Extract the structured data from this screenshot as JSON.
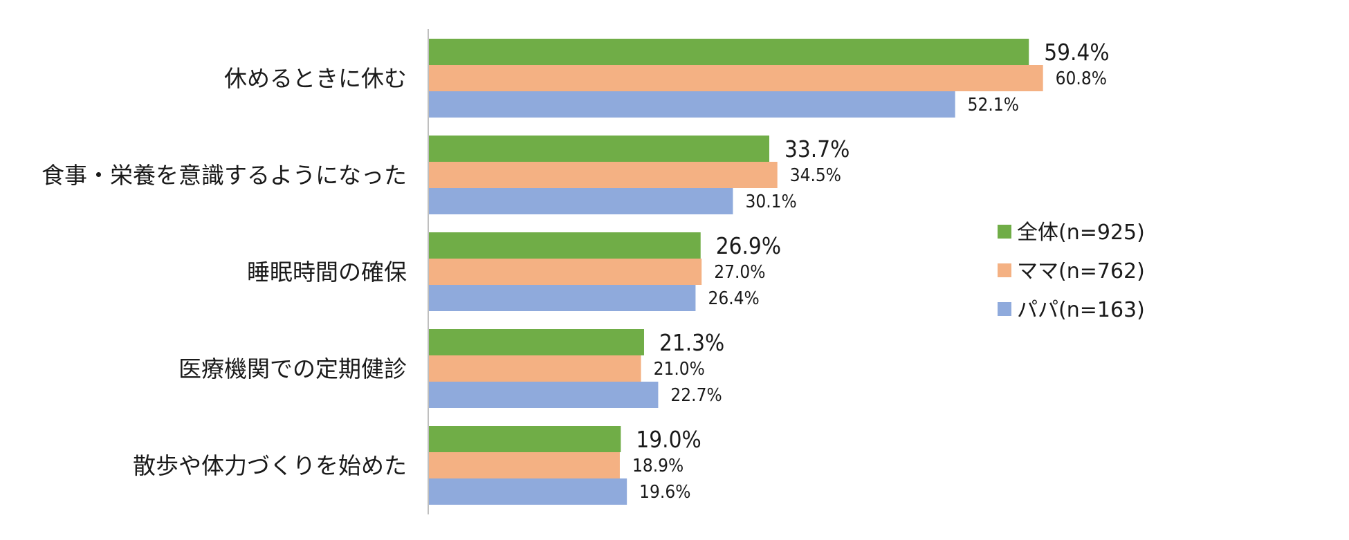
{
  "chart_data": {
    "type": "bar",
    "orientation": "horizontal",
    "title": "",
    "xlabel": "",
    "ylabel": "",
    "xlim": [
      0,
      70
    ],
    "grid": false,
    "legend_position": "right",
    "categories": [
      "休めるときに休む",
      "食事・栄養を意識するようになった",
      "睡眠時間の確保",
      "医療機関での定期健診",
      "散歩や体力づくりを始めた"
    ],
    "series": [
      {
        "name": "全体(n=925)",
        "color": "#70ad47",
        "values": [
          59.4,
          33.7,
          26.9,
          21.3,
          19.0
        ],
        "labels": [
          "59.4%",
          "33.7%",
          "26.9%",
          "21.3%",
          "19.0%"
        ]
      },
      {
        "name": "ママ(n=762)",
        "color": "#f4b183",
        "values": [
          60.8,
          34.5,
          27.0,
          21.0,
          18.9
        ],
        "labels": [
          "60.8%",
          "34.5%",
          "27.0%",
          "21.0%",
          "18.9%"
        ]
      },
      {
        "name": "パパ(n=163)",
        "color": "#8faadc",
        "values": [
          52.1,
          30.1,
          26.4,
          22.7,
          19.6
        ],
        "labels": [
          "52.1%",
          "30.1%",
          "26.4%",
          "22.7%",
          "19.6%"
        ]
      }
    ]
  }
}
